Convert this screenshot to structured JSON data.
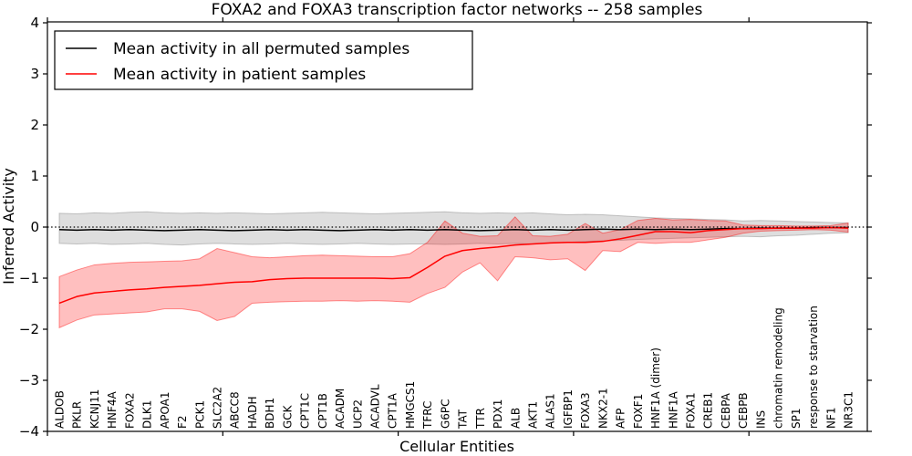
{
  "chart_data": {
    "type": "line",
    "title": "FOXA2 and FOXA3 transcription factor networks -- 258 samples",
    "xlabel": "Cellular Entities",
    "ylabel": "Inferred Activity",
    "ylim": [
      -4,
      4
    ],
    "yticks": [
      4,
      3,
      2,
      1,
      0,
      -1,
      -2,
      -3,
      -4
    ],
    "x_tick_rotation": 90,
    "grid": false,
    "legend_position": "upper left",
    "reference_line": {
      "y": 0,
      "style": "dotted",
      "color": "#000000"
    },
    "categories": [
      "ALDOB",
      "PKLR",
      "KCNJ11",
      "HNF4A",
      "FOXA2",
      "DLK1",
      "APOA1",
      "F2",
      "PCK1",
      "SLC2A2",
      "ABCC8",
      "HADH",
      "BDH1",
      "GCK",
      "CPT1C",
      "CPT1B",
      "ACADM",
      "UCP2",
      "ACADVL",
      "CPT1A",
      "HMGCS1",
      "TFRC",
      "G6PC",
      "TAT",
      "TTR",
      "PDX1",
      "ALB",
      "AKT1",
      "ALAS1",
      "IGFBP1",
      "FOXA3",
      "NKX2-1",
      "AFP",
      "FOXF1",
      "HNF1A (dimer)",
      "HNF1A",
      "FOXA1",
      "CREB1",
      "CEBPA",
      "CEBPB",
      "INS",
      "chromatin remodeling",
      "SP1",
      "response to starvation",
      "NF1",
      "NR3C1"
    ],
    "series": [
      {
        "name": "Mean activity in all permuted samples",
        "color": "#000000",
        "values": [
          -0.05,
          -0.06,
          -0.05,
          -0.06,
          -0.05,
          -0.06,
          -0.07,
          -0.06,
          -0.05,
          -0.06,
          -0.07,
          -0.06,
          -0.05,
          -0.06,
          -0.05,
          -0.06,
          -0.07,
          -0.06,
          -0.05,
          -0.06,
          -0.05,
          -0.06,
          -0.05,
          -0.06,
          -0.07,
          -0.06,
          -0.05,
          -0.06,
          -0.05,
          -0.06,
          -0.05,
          -0.04,
          -0.05,
          -0.04,
          -0.05,
          -0.04,
          -0.05,
          -0.04,
          -0.03,
          -0.03,
          -0.02,
          -0.02,
          -0.02,
          -0.01,
          -0.01,
          -0.01
        ]
      },
      {
        "name": "Mean activity in patient samples",
        "color": "#ff0000",
        "values": [
          -1.49,
          -1.36,
          -1.29,
          -1.26,
          -1.23,
          -1.21,
          -1.18,
          -1.16,
          -1.14,
          -1.11,
          -1.08,
          -1.07,
          -1.03,
          -1.01,
          -1.0,
          -1.0,
          -1.0,
          -1.0,
          -1.0,
          -1.01,
          -0.99,
          -0.79,
          -0.57,
          -0.46,
          -0.42,
          -0.39,
          -0.35,
          -0.33,
          -0.31,
          -0.3,
          -0.3,
          -0.28,
          -0.23,
          -0.16,
          -0.09,
          -0.09,
          -0.11,
          -0.07,
          -0.05,
          -0.03,
          -0.03,
          -0.02,
          -0.02,
          -0.02,
          -0.01,
          -0.02
        ]
      }
    ],
    "bands": [
      {
        "name": "permuted-samples-envelope",
        "color": "#888888",
        "alpha": 0.28,
        "upper": [
          0.27,
          0.26,
          0.28,
          0.27,
          0.29,
          0.3,
          0.28,
          0.27,
          0.28,
          0.27,
          0.28,
          0.27,
          0.26,
          0.27,
          0.28,
          0.29,
          0.28,
          0.27,
          0.26,
          0.27,
          0.28,
          0.29,
          0.3,
          0.28,
          0.27,
          0.28,
          0.27,
          0.28,
          0.26,
          0.24,
          0.25,
          0.24,
          0.22,
          0.2,
          0.18,
          0.17,
          0.16,
          0.15,
          0.14,
          0.12,
          0.13,
          0.12,
          0.11,
          0.1,
          0.09,
          0.08
        ],
        "lower": [
          -0.32,
          -0.33,
          -0.32,
          -0.34,
          -0.33,
          -0.32,
          -0.34,
          -0.35,
          -0.33,
          -0.32,
          -0.33,
          -0.34,
          -0.33,
          -0.32,
          -0.33,
          -0.34,
          -0.33,
          -0.32,
          -0.33,
          -0.34,
          -0.33,
          -0.33,
          -0.34,
          -0.33,
          -0.32,
          -0.33,
          -0.32,
          -0.33,
          -0.31,
          -0.3,
          -0.28,
          -0.27,
          -0.26,
          -0.24,
          -0.23,
          -0.22,
          -0.21,
          -0.2,
          -0.19,
          -0.18,
          -0.19,
          -0.17,
          -0.16,
          -0.14,
          -0.12,
          -0.11
        ]
      },
      {
        "name": "patient-samples-envelope",
        "color": "#ff0000",
        "alpha": 0.25,
        "upper": [
          -0.97,
          -0.84,
          -0.74,
          -0.71,
          -0.69,
          -0.68,
          -0.67,
          -0.66,
          -0.62,
          -0.42,
          -0.5,
          -0.58,
          -0.6,
          -0.58,
          -0.56,
          -0.55,
          -0.56,
          -0.57,
          -0.58,
          -0.58,
          -0.52,
          -0.3,
          0.12,
          -0.12,
          -0.18,
          -0.17,
          0.2,
          -0.17,
          -0.18,
          -0.14,
          0.07,
          -0.12,
          -0.05,
          0.13,
          0.17,
          0.14,
          0.15,
          0.13,
          0.12,
          0.04,
          0.03,
          0.03,
          0.02,
          0.02,
          0.03,
          0.08
        ],
        "lower": [
          -1.97,
          -1.82,
          -1.72,
          -1.7,
          -1.68,
          -1.66,
          -1.6,
          -1.6,
          -1.65,
          -1.83,
          -1.75,
          -1.49,
          -1.47,
          -1.46,
          -1.45,
          -1.45,
          -1.44,
          -1.45,
          -1.44,
          -1.45,
          -1.47,
          -1.3,
          -1.18,
          -0.88,
          -0.7,
          -1.05,
          -0.58,
          -0.6,
          -0.64,
          -0.62,
          -0.85,
          -0.46,
          -0.48,
          -0.3,
          -0.32,
          -0.3,
          -0.3,
          -0.25,
          -0.2,
          -0.12,
          -0.08,
          -0.07,
          -0.06,
          -0.05,
          -0.06,
          -0.1
        ]
      }
    ]
  },
  "legend": {
    "entries": [
      {
        "label": "Mean activity in all permuted samples",
        "color": "#000000"
      },
      {
        "label": "Mean activity in patient samples",
        "color": "#ff0000"
      }
    ]
  }
}
